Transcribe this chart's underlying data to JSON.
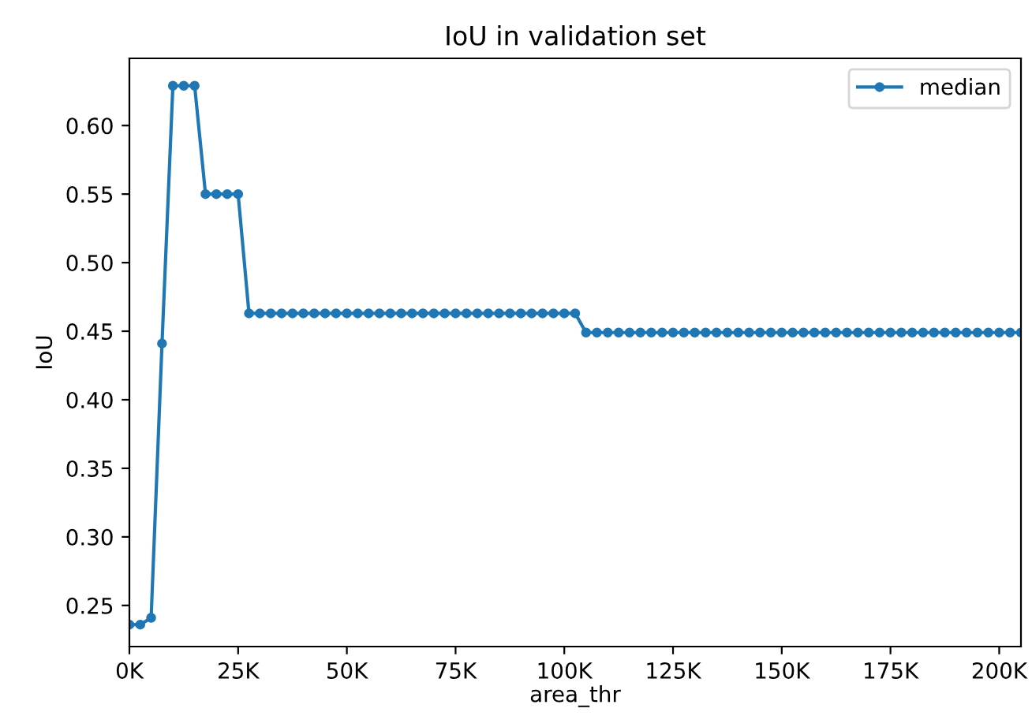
{
  "chart_data": {
    "type": "line",
    "title": "IoU in validation set",
    "xlabel": "area_thr",
    "ylabel": "IoU",
    "x": [
      0,
      2500,
      5000,
      7500,
      10000,
      12500,
      15000,
      17500,
      20000,
      22500,
      25000,
      27500,
      30000,
      32500,
      35000,
      37500,
      40000,
      42500,
      45000,
      47500,
      50000,
      52500,
      55000,
      57500,
      60000,
      62500,
      65000,
      67500,
      70000,
      72500,
      75000,
      77500,
      80000,
      82500,
      85000,
      87500,
      90000,
      92500,
      95000,
      97500,
      100000,
      102500,
      105000,
      107500,
      110000,
      112500,
      115000,
      117500,
      120000,
      122500,
      125000,
      127500,
      130000,
      132500,
      135000,
      137500,
      140000,
      142500,
      145000,
      147500,
      150000,
      152500,
      155000,
      157500,
      160000,
      162500,
      165000,
      167500,
      170000,
      172500,
      175000,
      177500,
      180000,
      182500,
      185000,
      187500,
      190000,
      192500,
      195000,
      197500,
      200000,
      202500,
      205000
    ],
    "series": [
      {
        "name": "median",
        "color": "#1f77b4",
        "values": [
          0.236,
          0.236,
          0.241,
          0.441,
          0.629,
          0.629,
          0.629,
          0.55,
          0.55,
          0.55,
          0.55,
          0.463,
          0.463,
          0.463,
          0.463,
          0.463,
          0.463,
          0.463,
          0.463,
          0.463,
          0.463,
          0.463,
          0.463,
          0.463,
          0.463,
          0.463,
          0.463,
          0.463,
          0.463,
          0.463,
          0.463,
          0.463,
          0.463,
          0.463,
          0.463,
          0.463,
          0.463,
          0.463,
          0.463,
          0.463,
          0.463,
          0.463,
          0.449,
          0.449,
          0.449,
          0.449,
          0.449,
          0.449,
          0.449,
          0.449,
          0.449,
          0.449,
          0.449,
          0.449,
          0.449,
          0.449,
          0.449,
          0.449,
          0.449,
          0.449,
          0.449,
          0.449,
          0.449,
          0.449,
          0.449,
          0.449,
          0.449,
          0.449,
          0.449,
          0.449,
          0.449,
          0.449,
          0.449,
          0.449,
          0.449,
          0.449,
          0.449,
          0.449,
          0.449,
          0.449,
          0.449,
          0.449,
          0.449
        ]
      }
    ],
    "xlim": [
      0,
      205000
    ],
    "ylim": [
      0.22,
      0.649
    ],
    "xticks": [
      {
        "value": 0,
        "label": "0K"
      },
      {
        "value": 25000,
        "label": "25K"
      },
      {
        "value": 50000,
        "label": "50K"
      },
      {
        "value": 75000,
        "label": "75K"
      },
      {
        "value": 100000,
        "label": "100K"
      },
      {
        "value": 125000,
        "label": "125K"
      },
      {
        "value": 150000,
        "label": "150K"
      },
      {
        "value": 175000,
        "label": "175K"
      },
      {
        "value": 200000,
        "label": "200K"
      }
    ],
    "yticks": [
      {
        "value": 0.25,
        "label": "0.25"
      },
      {
        "value": 0.3,
        "label": "0.30"
      },
      {
        "value": 0.35,
        "label": "0.35"
      },
      {
        "value": 0.4,
        "label": "0.40"
      },
      {
        "value": 0.45,
        "label": "0.45"
      },
      {
        "value": 0.5,
        "label": "0.50"
      },
      {
        "value": 0.55,
        "label": "0.55"
      },
      {
        "value": 0.6,
        "label": "0.60"
      }
    ],
    "marker": "circle",
    "line_style": "solid",
    "legend": "top right",
    "grid": false
  }
}
